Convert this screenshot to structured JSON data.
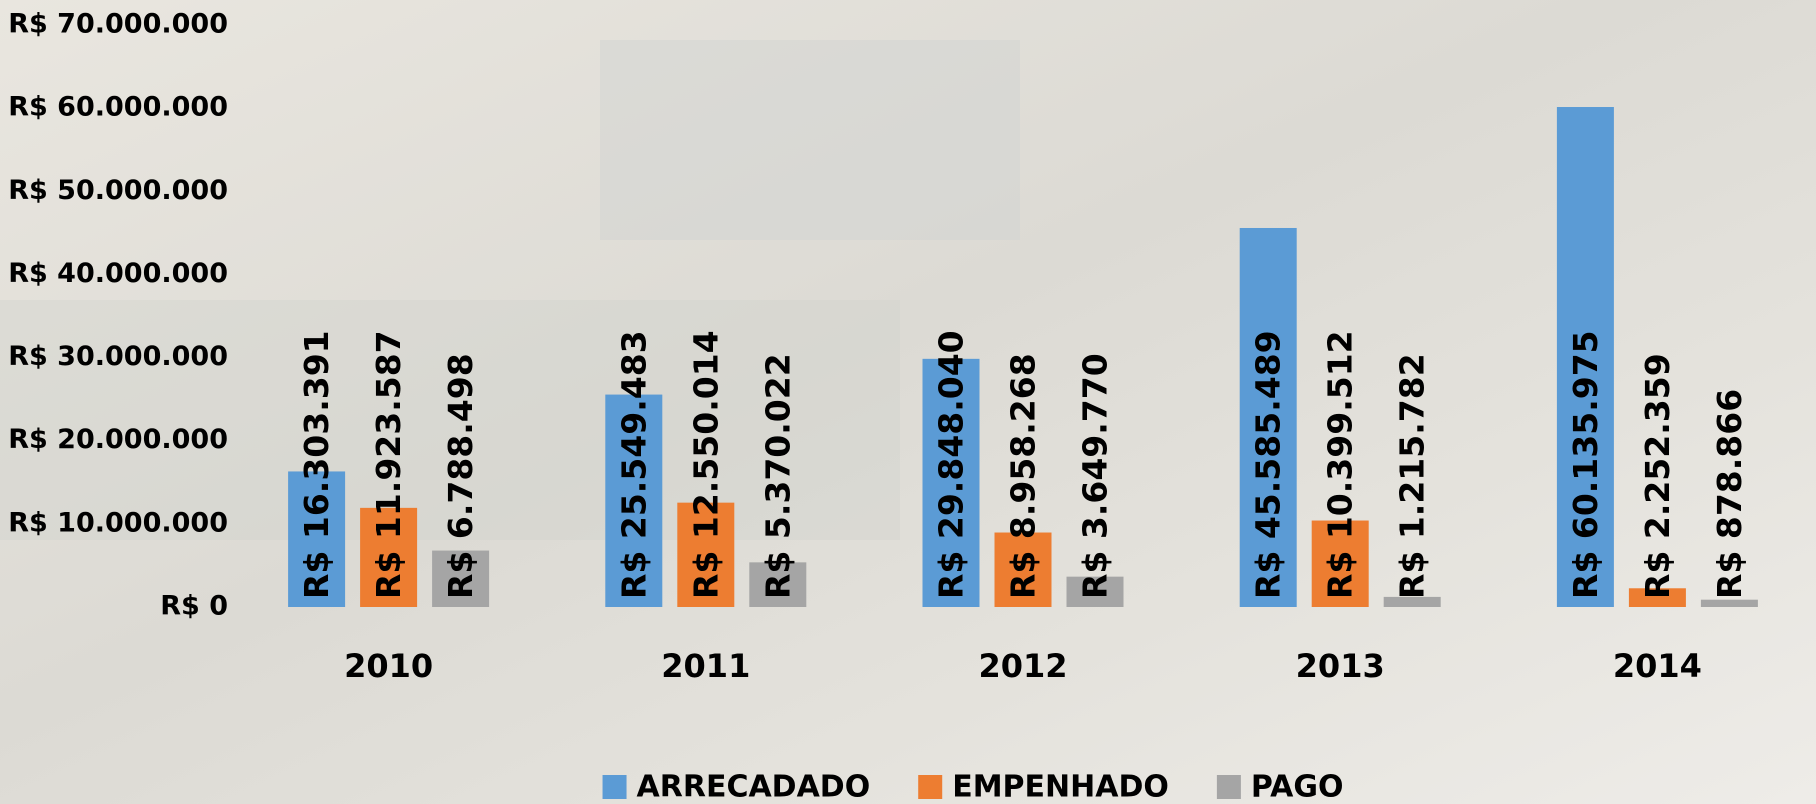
{
  "chart_data": {
    "type": "bar",
    "categories": [
      "2010",
      "2011",
      "2012",
      "2013",
      "2014"
    ],
    "series": [
      {
        "name": "ARRECADADO",
        "color": "#5b9bd5",
        "values": [
          16303391,
          25549483,
          29848040,
          45585489,
          60135975
        ],
        "value_labels": [
          "R$ 16.303.391",
          "R$ 25.549.483",
          "R$ 29.848.040",
          "R$ 45.585.489",
          "R$ 60.135.975"
        ]
      },
      {
        "name": "EMPENHADO",
        "color": "#ed7d31",
        "values": [
          11923587,
          12550014,
          8958268,
          10399512,
          2252359
        ],
        "value_labels": [
          "R$ 11.923.587",
          "R$ 12.550.014",
          "R$ 8.958.268",
          "R$ 10.399.512",
          "R$ 2.252.359"
        ]
      },
      {
        "name": "PAGO",
        "color": "#a5a5a5",
        "values": [
          6788498,
          5370022,
          3649770,
          1215782,
          878866
        ],
        "value_labels": [
          "R$ 6.788.498",
          "R$ 5.370.022",
          "R$ 3.649.770",
          "R$ 1.215.782",
          "R$ 878.866"
        ]
      }
    ],
    "ylim": [
      0,
      70000000
    ],
    "yticks": [
      {
        "value": 0,
        "label": "R$ 0"
      },
      {
        "value": 10000000,
        "label": "R$ 10.000.000"
      },
      {
        "value": 20000000,
        "label": "R$ 20.000.000"
      },
      {
        "value": 30000000,
        "label": "R$ 30.000.000"
      },
      {
        "value": 40000000,
        "label": "R$ 40.000.000"
      },
      {
        "value": 50000000,
        "label": "R$ 50.000.000"
      },
      {
        "value": 60000000,
        "label": "R$ 60.000.000"
      },
      {
        "value": 70000000,
        "label": "R$ 70.000.000"
      }
    ],
    "grid": false,
    "legend": "bottom"
  }
}
